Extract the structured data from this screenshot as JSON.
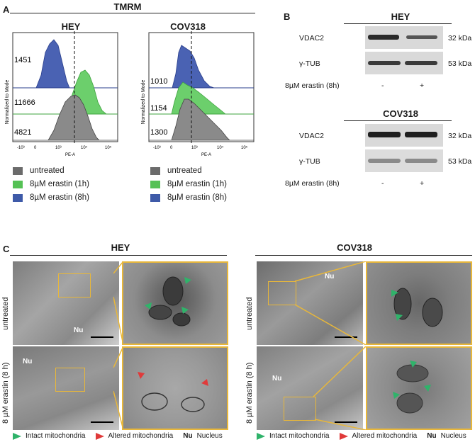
{
  "panelA": {
    "letter": "A",
    "title": "TMRM",
    "hey": {
      "title": "HEY",
      "ylabel": "Normalized to Mode",
      "xlabel": "PE-A",
      "values": [
        "1451",
        "11666",
        "4821"
      ],
      "ticks": [
        "-10³",
        "0",
        "10³",
        "10⁴",
        "10⁵"
      ]
    },
    "cov": {
      "title": "COV318",
      "ylabel": "Normalized to Mode",
      "xlabel": "PE-A",
      "values": [
        "1010",
        "1154",
        "1300"
      ],
      "ticks": [
        "-10³",
        "0",
        "10³",
        "10⁴",
        "10⁵"
      ]
    },
    "legend": [
      {
        "label": "untreated",
        "color": "#6b6b6b"
      },
      {
        "label": "8µM erastin (1h)",
        "color": "#55c155"
      },
      {
        "label": "8µM erastin (8h)",
        "color": "#3e5aa8"
      }
    ]
  },
  "panelB": {
    "letter": "B",
    "hey": {
      "title": "HEY",
      "band1": "VDAC2",
      "band1_kda": "32 kDa",
      "band2": "γ-TUB",
      "band2_kda": "53 kDa",
      "treat": "8µM erastin (8h)",
      "minus": "-",
      "plus": "+"
    },
    "cov": {
      "title": "COV318",
      "band1": "VDAC2",
      "band1_kda": "32 kDa",
      "band2": "γ-TUB",
      "band2_kda": "53 kDa",
      "treat": "8µM erastin (8h)",
      "minus": "-",
      "plus": "+"
    }
  },
  "panelC": {
    "letter": "C",
    "hey_title": "HEY",
    "cov_title": "COV318",
    "row1_label": "untreated",
    "row2_label": "8 µM erastin (8 h)",
    "nu": "Nu",
    "legend": {
      "intact": "Intact mitochondria",
      "altered": "Altered mitochondria",
      "nu_abbr": "Nu",
      "nu_text": "Nucleus",
      "intact_color": "#2fb36a",
      "altered_color": "#e03a3a"
    }
  }
}
